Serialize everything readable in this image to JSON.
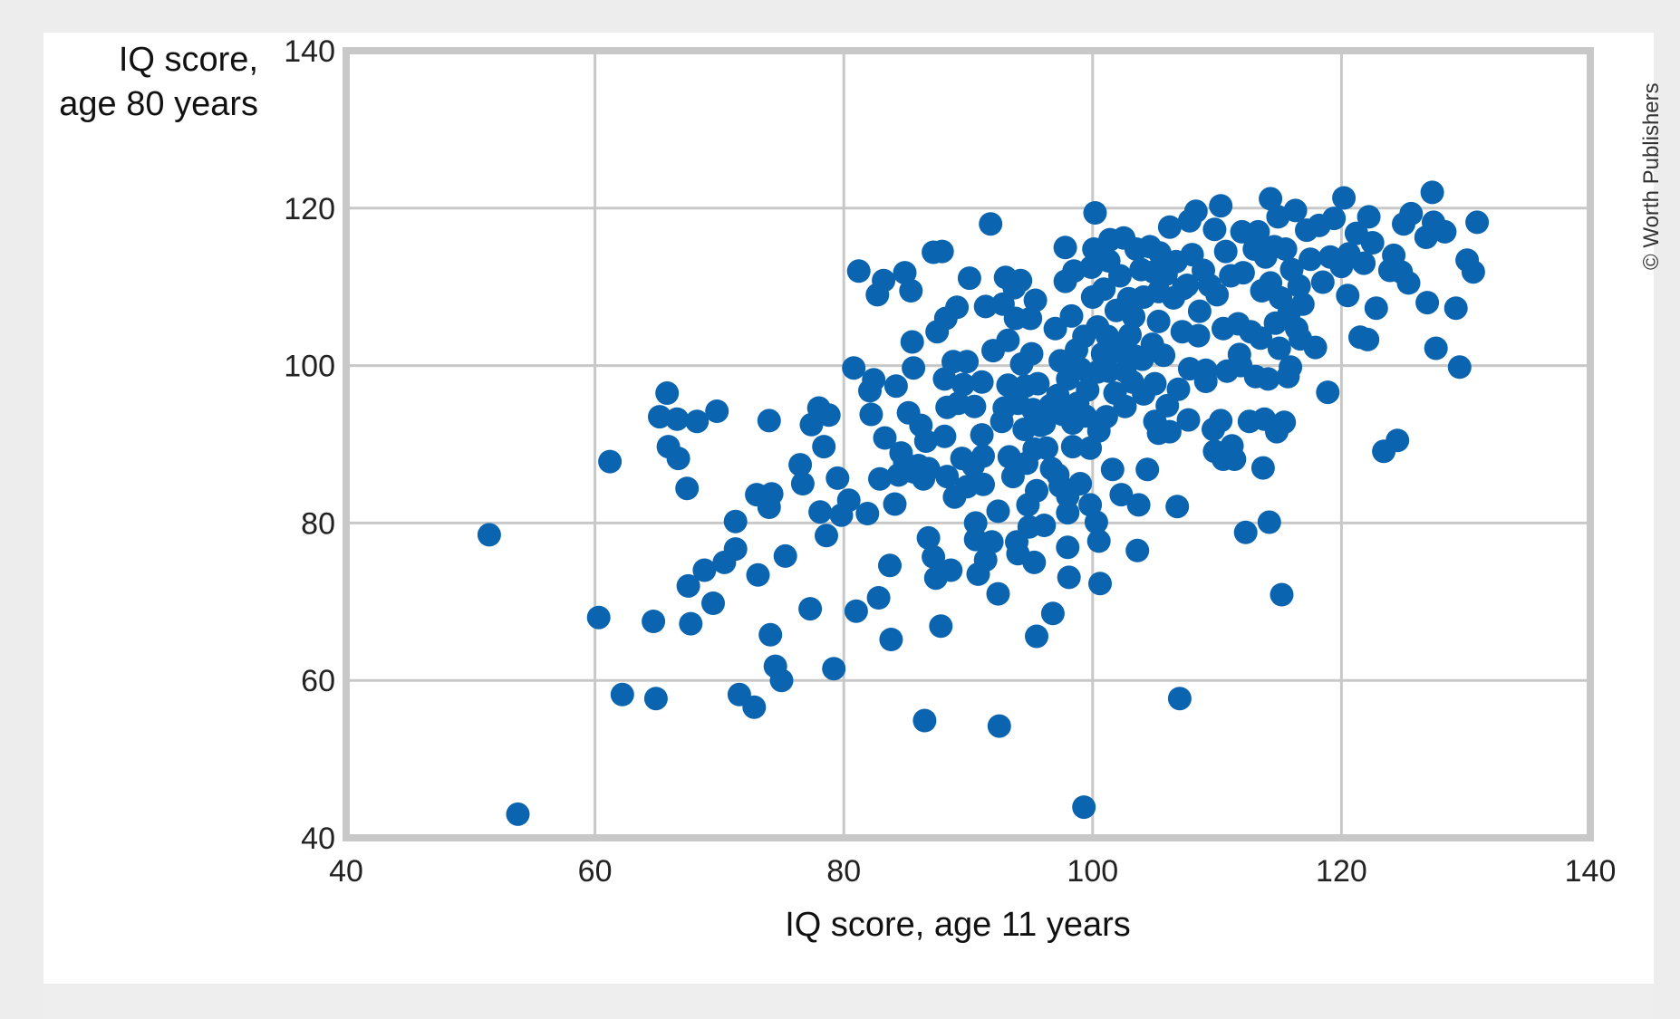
{
  "credit": "© Worth Publishers",
  "colors": {
    "point": "#0a64b0",
    "grid": "#c8c8c8",
    "frame": "#c8c8c8"
  },
  "chart_data": {
    "type": "scatter",
    "title": "",
    "xlabel": "IQ score, age 11 years",
    "ylabel_line1": "IQ score,",
    "ylabel_line2": "age 80 years",
    "xlim": [
      40,
      140
    ],
    "ylim": [
      40,
      140
    ],
    "xticks": [
      40,
      60,
      80,
      100,
      120,
      140
    ],
    "yticks": [
      40,
      60,
      80,
      100,
      120,
      140
    ],
    "grid": true,
    "points": [
      [
        51.5,
        78.5
      ],
      [
        53.8,
        43
      ],
      [
        60.3,
        68
      ],
      [
        61.2,
        87.8
      ],
      [
        62.2,
        58.2
      ],
      [
        64.7,
        67.5
      ],
      [
        64.9,
        57.7
      ],
      [
        65.2,
        93.5
      ],
      [
        65.8,
        96.5
      ],
      [
        65.9,
        89.7
      ],
      [
        66.6,
        93.2
      ],
      [
        66.7,
        88.2
      ],
      [
        67.4,
        84.4
      ],
      [
        67.5,
        72
      ],
      [
        67.7,
        67.2
      ],
      [
        68.2,
        92.9
      ],
      [
        68.8,
        74
      ],
      [
        69.5,
        69.8
      ],
      [
        69.8,
        94.2
      ],
      [
        70.4,
        75
      ],
      [
        71.3,
        80.2
      ],
      [
        71.3,
        76.7
      ],
      [
        71.6,
        58.2
      ],
      [
        72.8,
        56.6
      ],
      [
        73.0,
        83.6
      ],
      [
        73.1,
        73.4
      ],
      [
        74.0,
        93
      ],
      [
        74.0,
        82
      ],
      [
        74.1,
        65.8
      ],
      [
        74.2,
        83.7
      ],
      [
        74.5,
        61.8
      ],
      [
        75.0,
        60
      ],
      [
        75.3,
        75.8
      ],
      [
        76.5,
        87.4
      ],
      [
        76.7,
        85
      ],
      [
        77.3,
        69.1
      ],
      [
        77.4,
        92.5
      ],
      [
        78.0,
        94.6
      ],
      [
        78.1,
        81.4
      ],
      [
        78.4,
        89.7
      ],
      [
        78.6,
        78.4
      ],
      [
        78.8,
        93.7
      ],
      [
        79.2,
        61.5
      ],
      [
        79.5,
        85.7
      ],
      [
        79.8,
        81
      ],
      [
        80.4,
        82.9
      ],
      [
        80.8,
        99.7
      ],
      [
        81.0,
        68.8
      ],
      [
        81.2,
        112
      ],
      [
        81.9,
        81.2
      ],
      [
        82.1,
        96.8
      ],
      [
        82.2,
        93.8
      ],
      [
        82.4,
        98.2
      ],
      [
        82.7,
        109
      ],
      [
        82.8,
        70.5
      ],
      [
        82.9,
        85.6
      ],
      [
        83.2,
        110.8
      ],
      [
        83.3,
        90.8
      ],
      [
        83.7,
        74.6
      ],
      [
        83.8,
        65.2
      ],
      [
        84.1,
        82.4
      ],
      [
        84.2,
        97.4
      ],
      [
        84.4,
        86.1
      ],
      [
        84.6,
        88.9
      ],
      [
        84.9,
        111.8
      ],
      [
        84.9,
        87.6
      ],
      [
        85.2,
        94
      ],
      [
        85.4,
        109.5
      ],
      [
        85.5,
        103
      ],
      [
        85.6,
        99.7
      ],
      [
        85.6,
        86.5
      ],
      [
        86.0,
        87.3
      ],
      [
        86.2,
        92.4
      ],
      [
        86.4,
        85.6
      ],
      [
        86.5,
        54.9
      ],
      [
        86.6,
        90.4
      ],
      [
        86.8,
        78.1
      ],
      [
        86.8,
        86.9
      ],
      [
        87.2,
        114.4
      ],
      [
        87.2,
        75.7
      ],
      [
        87.4,
        73
      ],
      [
        87.5,
        104.3
      ],
      [
        87.8,
        66.9
      ],
      [
        87.9,
        114.5
      ],
      [
        88.1,
        91
      ],
      [
        88.1,
        98.3
      ],
      [
        88.2,
        106
      ],
      [
        88.3,
        94.7
      ],
      [
        88.3,
        85.9
      ],
      [
        88.6,
        74
      ],
      [
        88.8,
        100.5
      ],
      [
        88.9,
        83.3
      ],
      [
        89.1,
        107.4
      ],
      [
        89.2,
        95.2
      ],
      [
        89.5,
        88.2
      ],
      [
        89.6,
        97.6
      ],
      [
        89.9,
        100.5
      ],
      [
        89.9,
        84.6
      ],
      [
        90.1,
        111.1
      ],
      [
        90.4,
        87.3
      ],
      [
        90.5,
        94.8
      ],
      [
        90.6,
        80
      ],
      [
        90.6,
        77.9
      ],
      [
        90.8,
        73.5
      ],
      [
        91.1,
        97.9
      ],
      [
        91.1,
        91.2
      ],
      [
        91.2,
        88.5
      ],
      [
        91.2,
        84.9
      ],
      [
        91.4,
        107.5
      ],
      [
        91.4,
        75.3
      ],
      [
        91.8,
        118
      ],
      [
        91.9,
        77.6
      ],
      [
        92.0,
        101.9
      ],
      [
        92.4,
        81.5
      ],
      [
        92.4,
        71
      ],
      [
        92.5,
        54.2
      ],
      [
        92.7,
        92.9
      ],
      [
        92.8,
        107.8
      ],
      [
        92.9,
        94.6
      ],
      [
        93.0,
        111.2
      ],
      [
        93.2,
        103.2
      ],
      [
        93.2,
        97.5
      ],
      [
        93.3,
        88.4
      ],
      [
        93.6,
        85.9
      ],
      [
        93.7,
        109.9
      ],
      [
        93.8,
        106
      ],
      [
        93.9,
        77.6
      ],
      [
        94.0,
        95.2
      ],
      [
        94.0,
        76.1
      ],
      [
        94.2,
        110.8
      ],
      [
        94.3,
        100.2
      ],
      [
        94.5,
        91.9
      ],
      [
        94.6,
        97.4
      ],
      [
        94.7,
        87.6
      ],
      [
        94.8,
        82.3
      ],
      [
        94.9,
        79.5
      ],
      [
        95.0,
        106
      ],
      [
        95.1,
        101.5
      ],
      [
        95.2,
        94.4
      ],
      [
        95.3,
        89.4
      ],
      [
        95.3,
        75
      ],
      [
        95.4,
        108.3
      ],
      [
        95.5,
        84.1
      ],
      [
        95.5,
        65.6
      ],
      [
        95.6,
        97.7
      ],
      [
        95.8,
        92.4
      ],
      [
        96.1,
        92.6
      ],
      [
        96.1,
        79.7
      ],
      [
        96.3,
        89.5
      ],
      [
        96.6,
        94.9
      ],
      [
        96.7,
        86.9
      ],
      [
        96.8,
        68.5
      ],
      [
        97.0,
        104.7
      ],
      [
        97.2,
        96.2
      ],
      [
        97.2,
        86.1
      ],
      [
        97.4,
        100.6
      ],
      [
        97.4,
        84.7
      ],
      [
        97.6,
        93.8
      ],
      [
        97.8,
        115
      ],
      [
        97.8,
        110.7
      ],
      [
        97.9,
        94.8
      ],
      [
        98.0,
        98.3
      ],
      [
        98.0,
        83.4
      ],
      [
        98.0,
        81.3
      ],
      [
        98.0,
        76.9
      ],
      [
        98.1,
        73.1
      ],
      [
        98.3,
        106.3
      ],
      [
        98.4,
        89.7
      ],
      [
        98.4,
        92.7
      ],
      [
        98.5,
        112
      ],
      [
        98.7,
        102
      ],
      [
        98.8,
        95.2
      ],
      [
        99.0,
        99.6
      ],
      [
        99.0,
        85
      ],
      [
        99.3,
        103.7
      ],
      [
        99.3,
        43.9
      ],
      [
        99.4,
        93.6
      ],
      [
        99.6,
        96.9
      ],
      [
        99.8,
        89.5
      ],
      [
        99.8,
        82.3
      ],
      [
        99.9,
        112.5
      ],
      [
        100.0,
        108.7
      ],
      [
        100.1,
        114.8
      ],
      [
        100.2,
        119.4
      ],
      [
        100.3,
        80.1
      ],
      [
        100.4,
        104.9
      ],
      [
        100.4,
        99.2
      ],
      [
        100.5,
        91.7
      ],
      [
        100.5,
        77.7
      ],
      [
        100.6,
        72.3
      ],
      [
        100.8,
        101.5
      ],
      [
        100.9,
        109.7
      ],
      [
        101.1,
        93.5
      ],
      [
        101.2,
        103.7
      ],
      [
        101.3,
        113.3
      ],
      [
        101.3,
        99.3
      ],
      [
        101.4,
        116
      ],
      [
        101.6,
        86.8
      ],
      [
        101.8,
        96.5
      ],
      [
        101.9,
        107
      ],
      [
        102.0,
        101.9
      ],
      [
        102.2,
        111.4
      ],
      [
        102.3,
        83.6
      ],
      [
        102.5,
        116.2
      ],
      [
        102.6,
        99.3
      ],
      [
        102.6,
        94.8
      ],
      [
        102.9,
        108.5
      ],
      [
        103.0,
        103.9
      ],
      [
        103.2,
        97.9
      ],
      [
        103.3,
        106.2
      ],
      [
        103.4,
        101.2
      ],
      [
        103.5,
        114.8
      ],
      [
        103.6,
        76.5
      ],
      [
        103.7,
        82.3
      ],
      [
        103.9,
        112.2
      ],
      [
        104.0,
        100.8
      ],
      [
        104.1,
        108.7
      ],
      [
        104.1,
        96.4
      ],
      [
        104.4,
        86.8
      ],
      [
        104.6,
        115.1
      ],
      [
        104.8,
        102.7
      ],
      [
        104.9,
        111.9
      ],
      [
        105.0,
        97.7
      ],
      [
        105.0,
        92.9
      ],
      [
        105.3,
        109.4
      ],
      [
        105.3,
        105.6
      ],
      [
        105.3,
        91.4
      ],
      [
        105.4,
        114.3
      ],
      [
        105.7,
        101.3
      ],
      [
        105.9,
        111.6
      ],
      [
        106.0,
        94.9
      ],
      [
        106.2,
        91.6
      ],
      [
        106.2,
        117.6
      ],
      [
        106.5,
        108.6
      ],
      [
        106.7,
        113.2
      ],
      [
        106.8,
        82.1
      ],
      [
        106.9,
        97
      ],
      [
        107.0,
        57.7
      ],
      [
        107.2,
        104.3
      ],
      [
        107.3,
        109.8
      ],
      [
        107.6,
        110.2
      ],
      [
        107.7,
        93.1
      ],
      [
        107.8,
        118.4
      ],
      [
        107.8,
        99.6
      ],
      [
        108.0,
        114.1
      ],
      [
        108.3,
        119.6
      ],
      [
        108.5,
        103.8
      ],
      [
        108.6,
        106.9
      ],
      [
        108.9,
        112.1
      ],
      [
        109.1,
        99.4
      ],
      [
        109.1,
        98
      ],
      [
        109.4,
        110.2
      ],
      [
        109.7,
        91.9
      ],
      [
        109.8,
        117.3
      ],
      [
        109.8,
        89.1
      ],
      [
        110.0,
        109
      ],
      [
        110.3,
        120.3
      ],
      [
        110.3,
        93
      ],
      [
        110.5,
        104.7
      ],
      [
        110.5,
        88.1
      ],
      [
        110.7,
        114.5
      ],
      [
        110.8,
        99.3
      ],
      [
        111.1,
        111.4
      ],
      [
        111.2,
        89.8
      ],
      [
        111.4,
        88.1
      ],
      [
        111.7,
        105.3
      ],
      [
        111.8,
        101.4
      ],
      [
        111.9,
        100
      ],
      [
        112.0,
        117
      ],
      [
        112.1,
        111.8
      ],
      [
        112.3,
        78.8
      ],
      [
        112.6,
        92.9
      ],
      [
        112.7,
        104.3
      ],
      [
        113.0,
        114.8
      ],
      [
        113.1,
        98.6
      ],
      [
        113.3,
        117
      ],
      [
        113.5,
        103.5
      ],
      [
        113.6,
        109.5
      ],
      [
        113.7,
        87
      ],
      [
        113.8,
        93.2
      ],
      [
        113.9,
        113.8
      ],
      [
        114.1,
        98.3
      ],
      [
        114.2,
        80.1
      ],
      [
        114.3,
        110.5
      ],
      [
        114.3,
        121.2
      ],
      [
        114.6,
        115.1
      ],
      [
        114.7,
        105.4
      ],
      [
        114.8,
        91.6
      ],
      [
        114.9,
        118.9
      ],
      [
        115.0,
        102.2
      ],
      [
        115.1,
        108.6
      ],
      [
        115.2,
        70.9
      ],
      [
        115.4,
        92.8
      ],
      [
        115.5,
        114.8
      ],
      [
        115.7,
        98.6
      ],
      [
        115.8,
        106.7
      ],
      [
        115.9,
        99.8
      ],
      [
        116.0,
        112.2
      ],
      [
        116.3,
        119.7
      ],
      [
        116.4,
        104.7
      ],
      [
        116.6,
        110.1
      ],
      [
        116.7,
        103.4
      ],
      [
        116.9,
        107.8
      ],
      [
        117.2,
        117.2
      ],
      [
        117.5,
        113.5
      ],
      [
        117.9,
        102.3
      ],
      [
        118.2,
        117.8
      ],
      [
        118.5,
        110.6
      ],
      [
        118.9,
        96.6
      ],
      [
        119.1,
        113.8
      ],
      [
        119.4,
        118.7
      ],
      [
        120.0,
        112.6
      ],
      [
        120.2,
        121.3
      ],
      [
        120.5,
        108.9
      ],
      [
        120.6,
        114.2
      ],
      [
        121.2,
        116.8
      ],
      [
        121.5,
        103.6
      ],
      [
        121.8,
        113
      ],
      [
        122.1,
        103.3
      ],
      [
        122.2,
        118.9
      ],
      [
        122.5,
        115.6
      ],
      [
        122.8,
        107.3
      ],
      [
        123.4,
        89.1
      ],
      [
        123.9,
        112.1
      ],
      [
        124.2,
        114
      ],
      [
        124.5,
        90.5
      ],
      [
        124.8,
        111.9
      ],
      [
        125.0,
        118
      ],
      [
        125.4,
        110.5
      ],
      [
        125.6,
        119.3
      ],
      [
        126.8,
        116.3
      ],
      [
        126.9,
        108
      ],
      [
        127.3,
        122
      ],
      [
        127.4,
        118.2
      ],
      [
        127.6,
        102.2
      ],
      [
        128.3,
        117
      ],
      [
        129.2,
        107.3
      ],
      [
        129.5,
        99.8
      ],
      [
        130.1,
        113.4
      ],
      [
        130.6,
        111.9
      ],
      [
        130.9,
        118.2
      ]
    ]
  }
}
